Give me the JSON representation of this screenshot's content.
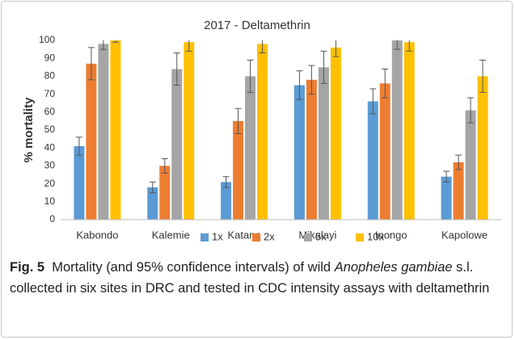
{
  "chart_data": {
    "type": "bar",
    "title": "2017 - Deltamethrin",
    "y_label": "% mortality",
    "categories": [
      "Kabondo",
      "Kalemie",
      "Katana",
      "Mikalayi",
      "Inongo",
      "Kapolowe"
    ],
    "series": [
      {
        "name": "1x",
        "color": "#5b9bd5",
        "values": [
          41,
          18,
          21,
          75,
          66,
          24
        ],
        "errors": [
          5,
          3,
          3,
          8,
          7,
          3
        ]
      },
      {
        "name": "2x",
        "color": "#ed7d31",
        "values": [
          87,
          30,
          55,
          78,
          76,
          32
        ],
        "errors": [
          9,
          4,
          7,
          8,
          8,
          4
        ]
      },
      {
        "name": "5x",
        "color": "#a5a5a5",
        "values": [
          98,
          84,
          80,
          85,
          100,
          61
        ],
        "errors": [
          3,
          9,
          9,
          9,
          5,
          7
        ]
      },
      {
        "name": "10x",
        "color": "#ffc000",
        "values": [
          100,
          99,
          98,
          96,
          99,
          80
        ],
        "errors": [
          1,
          5,
          5,
          5,
          5,
          9
        ]
      }
    ],
    "ylim": [
      0,
      100
    ],
    "yticks": [
      0,
      10,
      20,
      30,
      40,
      50,
      60,
      70,
      80,
      90,
      100
    ],
    "grid": false,
    "legend": "bottom"
  },
  "caption": {
    "label": "Fig. 5",
    "parts": [
      "Mortality (and 95% confidence intervals) of wild ",
      "Anopheles gambiae",
      " s.l. collected in six sites in DRC and tested in CDC intensity assays with deltamethrin"
    ]
  }
}
